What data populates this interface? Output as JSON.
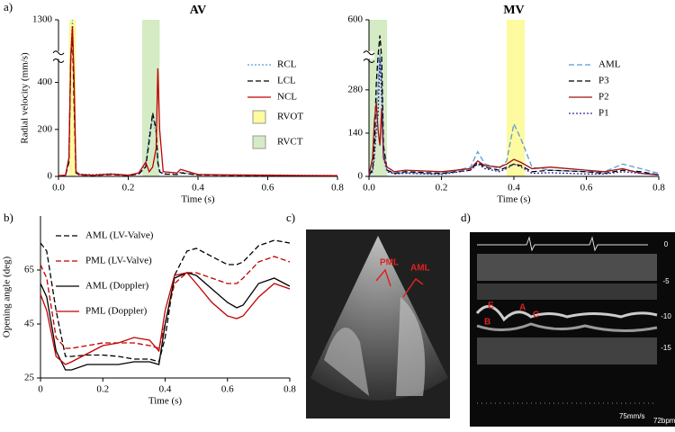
{
  "panel_labels": [
    "a)",
    "b)",
    "c)",
    "d)"
  ],
  "chart_data": [
    {
      "type": "line",
      "title": "AV",
      "x_label": "Time (s)",
      "y_label": "Radial velocity (mm/s)",
      "xlim": [
        0,
        0.8
      ],
      "xticks": [
        {
          "value": 0,
          "label": "0.0"
        },
        0.2,
        0.4,
        0.6,
        0.8
      ],
      "ylim": [
        0,
        1300
      ],
      "y_break": [
        500,
        1200
      ],
      "yticks": [
        0,
        200,
        400,
        1300
      ],
      "legend": "upper right",
      "spans": [
        {
          "name": "RVOT",
          "color": "#fdfaa0",
          "range": [
            0.03,
            0.05
          ]
        },
        {
          "name": "RVCT",
          "color": "#d5ebc4",
          "range": [
            0.24,
            0.29
          ]
        }
      ],
      "x": [
        0,
        0.02,
        0.03,
        0.035,
        0.04,
        0.045,
        0.05,
        0.06,
        0.1,
        0.15,
        0.2,
        0.23,
        0.25,
        0.26,
        0.27,
        0.28,
        0.285,
        0.29,
        0.3,
        0.34,
        0.35,
        0.4,
        0.5,
        0.6,
        0.7,
        0.8
      ],
      "series": [
        {
          "name": "RCL",
          "color": "#5b9bd5",
          "dash": "dotted",
          "values": [
            3,
            5,
            70,
            600,
            1300,
            350,
            25,
            10,
            8,
            12,
            6,
            12,
            50,
            180,
            250,
            180,
            50,
            25,
            12,
            10,
            18,
            8,
            7,
            6,
            5,
            4
          ]
        },
        {
          "name": "LCL",
          "color": "#000000",
          "dash": "dashed",
          "values": [
            2,
            4,
            60,
            500,
            1250,
            300,
            15,
            6,
            4,
            8,
            4,
            10,
            40,
            150,
            270,
            200,
            60,
            20,
            10,
            8,
            15,
            6,
            5,
            4,
            3,
            2
          ]
        },
        {
          "name": "NCL",
          "color": "#c00000",
          "dash": "solid",
          "values": [
            3,
            5,
            80,
            700,
            1280,
            400,
            20,
            8,
            5,
            10,
            5,
            15,
            60,
            20,
            40,
            120,
            460,
            200,
            20,
            15,
            30,
            8,
            6,
            5,
            4,
            3
          ]
        }
      ]
    },
    {
      "type": "line",
      "title": "MV",
      "x_label": "Time (s)",
      "xlim": [
        0,
        0.8
      ],
      "xticks": [
        {
          "value": 0,
          "label": "0.0"
        },
        0.2,
        0.4,
        0.6,
        0.8
      ],
      "ylim": [
        0,
        600
      ],
      "y_break": [
        380,
        560
      ],
      "yticks": [
        0,
        140,
        280,
        600
      ],
      "legend": "upper right",
      "spans": [
        {
          "color": "#d5ebc4",
          "range": [
            0.0,
            0.05
          ]
        },
        {
          "color": "#fdfaa0",
          "range": [
            0.38,
            0.43
          ]
        }
      ],
      "x": [
        0,
        0.01,
        0.015,
        0.02,
        0.025,
        0.03,
        0.035,
        0.04,
        0.05,
        0.07,
        0.1,
        0.2,
        0.28,
        0.3,
        0.32,
        0.36,
        0.38,
        0.4,
        0.42,
        0.45,
        0.5,
        0.6,
        0.65,
        0.7,
        0.75,
        0.8
      ],
      "series": [
        {
          "name": "AML",
          "color": "#5b9bd5",
          "dash": "dashed",
          "values": [
            5,
            30,
            100,
            200,
            300,
            520,
            300,
            80,
            20,
            10,
            12,
            8,
            30,
            80,
            40,
            25,
            50,
            170,
            120,
            30,
            20,
            15,
            15,
            40,
            25,
            10
          ]
        },
        {
          "name": "P3",
          "color": "#000000",
          "dash": "dashed",
          "values": [
            5,
            20,
            100,
            300,
            450,
            580,
            400,
            100,
            20,
            10,
            15,
            10,
            20,
            45,
            30,
            20,
            30,
            40,
            35,
            15,
            20,
            15,
            10,
            20,
            15,
            5
          ]
        },
        {
          "name": "P2",
          "color": "#a01010",
          "dash": "solid",
          "values": [
            5,
            60,
            180,
            240,
            150,
            100,
            220,
            60,
            30,
            15,
            20,
            15,
            25,
            50,
            35,
            30,
            40,
            55,
            45,
            25,
            30,
            20,
            15,
            25,
            10,
            5
          ]
        },
        {
          "name": "P1",
          "color": "#3a2aa0",
          "dash": "dotted",
          "values": [
            3,
            15,
            60,
            150,
            200,
            400,
            250,
            60,
            15,
            8,
            10,
            6,
            20,
            40,
            25,
            15,
            25,
            40,
            30,
            10,
            12,
            8,
            8,
            15,
            10,
            5
          ]
        }
      ]
    },
    {
      "type": "line",
      "x_label": "Time (s)",
      "y_label": "Opening angle (deg)",
      "xlim": [
        0,
        0.8
      ],
      "xticks": [
        0,
        0.2,
        0.4,
        0.6,
        0.8
      ],
      "ylim": [
        25,
        85
      ],
      "yticks": [
        25,
        45,
        65
      ],
      "legend": "upper left",
      "x": [
        0,
        0.02,
        0.05,
        0.08,
        0.1,
        0.15,
        0.2,
        0.25,
        0.3,
        0.35,
        0.38,
        0.4,
        0.43,
        0.47,
        0.5,
        0.55,
        0.6,
        0.63,
        0.65,
        0.7,
        0.75,
        0.8
      ],
      "series": [
        {
          "name": "AML (LV-Valve)",
          "color": "#000000",
          "dash": "dashed",
          "values": [
            75,
            72,
            50,
            33,
            33,
            33.5,
            33.5,
            33,
            32,
            32,
            31,
            40,
            63,
            72,
            73,
            70,
            67,
            67,
            68,
            74,
            76,
            75
          ]
        },
        {
          "name": "PML (LV-Valve)",
          "color": "#c00000",
          "dash": "dashed",
          "values": [
            67,
            62,
            40,
            36,
            36,
            37,
            38,
            38,
            38,
            37,
            36,
            45,
            60,
            64,
            64,
            62,
            60,
            60,
            62,
            68,
            70,
            68
          ]
        },
        {
          "name": "AML (Doppler)",
          "color": "#000000",
          "dash": "solid",
          "values": [
            60,
            55,
            35,
            28,
            28,
            30,
            30,
            30,
            31,
            31,
            30,
            45,
            62,
            64,
            63,
            58,
            53,
            51,
            52,
            60,
            62,
            59
          ]
        },
        {
          "name": "PML (Doppler)",
          "color": "#c00000",
          "dash": "solid",
          "values": [
            56,
            50,
            33,
            30,
            31,
            34,
            37,
            38,
            40,
            39,
            35,
            50,
            63,
            64,
            60,
            53,
            48,
            47,
            48,
            55,
            60,
            58
          ]
        }
      ]
    }
  ],
  "echo_image": {
    "labels": [
      "PML",
      "AML"
    ]
  },
  "mmode_image": {
    "depth_ticks": [
      0,
      -5,
      -10,
      -15
    ],
    "labels": [
      "E",
      "A",
      "C",
      "B"
    ],
    "speed": "75mm/s",
    "rate": "72bpm"
  }
}
